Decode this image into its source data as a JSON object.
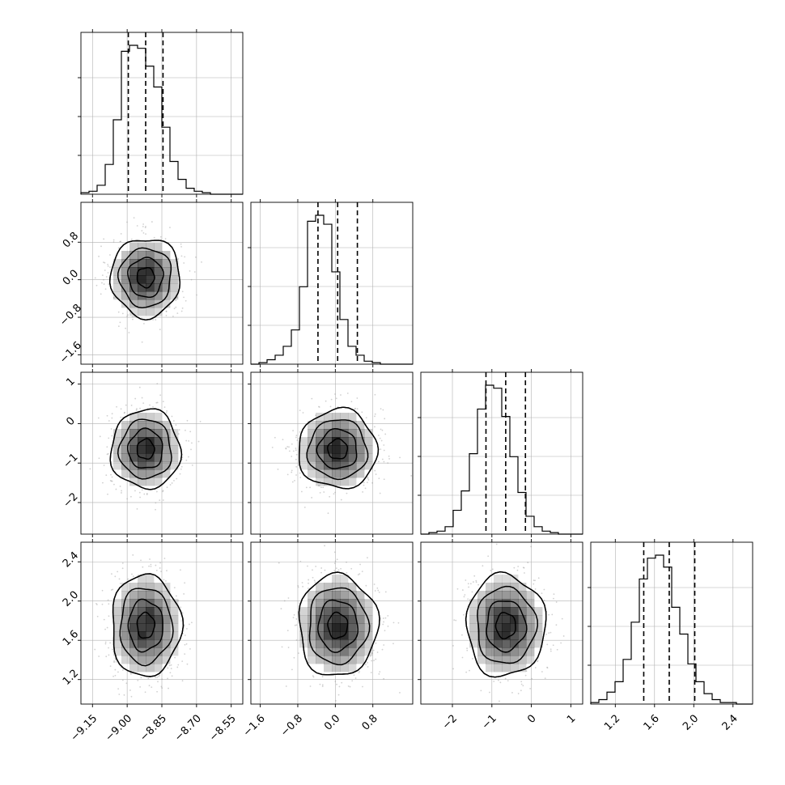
{
  "chart_data": {
    "type": "corner",
    "title": "",
    "grid": true,
    "legend": "none",
    "colors": {
      "axes": "#000000",
      "grid": "#b0b0b0",
      "points": "#9a9a9a",
      "density": "#000000",
      "contours": "#000000",
      "quantile_lines": "#000000"
    },
    "quantiles": [
      0.16,
      0.5,
      0.84
    ],
    "contour_levels": [
      0.118,
      0.393,
      0.675,
      0.865
    ],
    "parameters": [
      {
        "index": 0,
        "label": "",
        "mean": -8.92,
        "sd": 0.075,
        "range": [
          -9.2,
          -8.5
        ],
        "quantile_values": [
          -8.995,
          -8.92,
          -8.845
        ],
        "ticks": [
          "-9.15",
          "-9.00",
          "-8.85",
          "-8.70",
          "-8.55"
        ]
      },
      {
        "index": 1,
        "label": "",
        "mean": 0.05,
        "sd": 0.42,
        "range": [
          -1.8,
          1.65
        ],
        "quantile_values": [
          -0.37,
          0.05,
          0.47
        ],
        "ticks": [
          "-1.6",
          "-0.8",
          "0.0",
          "0.8"
        ]
      },
      {
        "index": 2,
        "label": "",
        "mean": -0.65,
        "sd": 0.5,
        "range": [
          -2.8,
          1.3
        ],
        "quantile_values": [
          -1.15,
          -0.65,
          -0.15
        ],
        "ticks": [
          "-2",
          "-1",
          "0",
          "1"
        ]
      },
      {
        "index": 3,
        "label": "",
        "mean": 1.75,
        "sd": 0.26,
        "range": [
          0.95,
          2.6
        ],
        "quantile_values": [
          1.49,
          1.75,
          2.01
        ],
        "ticks": [
          "1.2",
          "1.6",
          "2.0",
          "2.4"
        ]
      }
    ],
    "histograms": [
      {
        "parameter": 0,
        "bins": 20,
        "counts": [
          1,
          2,
          6,
          20,
          50,
          96,
          100,
          98,
          86,
          72,
          45,
          22,
          10,
          4,
          2,
          1,
          0,
          0,
          0,
          0
        ]
      },
      {
        "parameter": 1,
        "bins": 20,
        "counts": [
          0,
          1,
          3,
          6,
          12,
          23,
          52,
          96,
          100,
          94,
          62,
          30,
          12,
          6,
          2,
          1,
          0,
          0,
          0,
          0
        ]
      },
      {
        "parameter": 2,
        "bins": 20,
        "counts": [
          0,
          1,
          2,
          5,
          16,
          29,
          54,
          84,
          100,
          98,
          79,
          52,
          28,
          12,
          5,
          2,
          1,
          0,
          0,
          0
        ]
      },
      {
        "parameter": 3,
        "bins": 20,
        "counts": [
          1,
          3,
          8,
          15,
          30,
          55,
          84,
          98,
          100,
          92,
          65,
          47,
          27,
          15,
          7,
          3,
          1,
          1,
          0,
          0
        ]
      }
    ]
  }
}
